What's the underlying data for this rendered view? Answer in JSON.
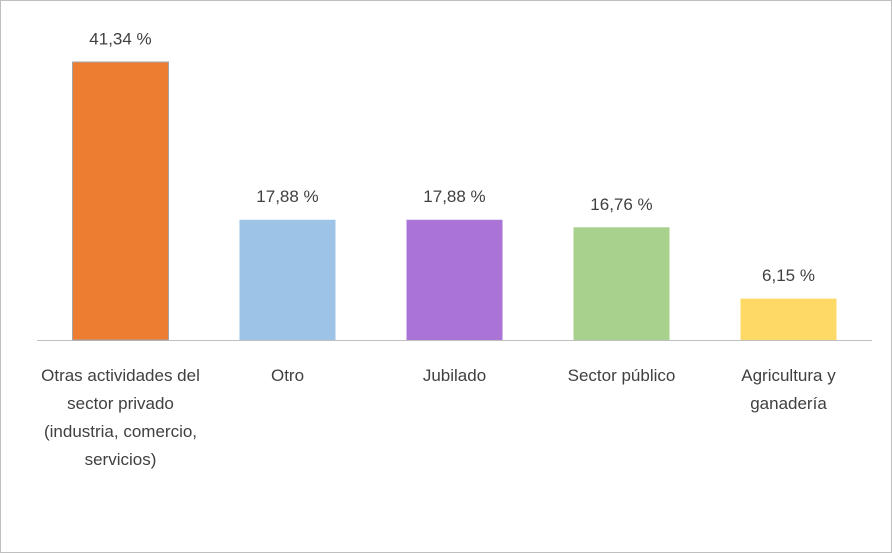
{
  "chart_data": {
    "type": "bar",
    "categories": [
      "Otras actividades del sector privado (industria, comercio, servicios)",
      "Otro",
      "Jubilado",
      "Sector público",
      "Agricultura y ganadería"
    ],
    "values": [
      41.34,
      17.88,
      17.88,
      16.76,
      6.15
    ],
    "value_labels": [
      "41,34 %",
      "17,88 %",
      "17,88 %",
      "16,76 %",
      "6,15 %"
    ],
    "colors": [
      "#ed7d31",
      "#9dc3e6",
      "#a974d6",
      "#a9d18e",
      "#ffd966"
    ]
  }
}
